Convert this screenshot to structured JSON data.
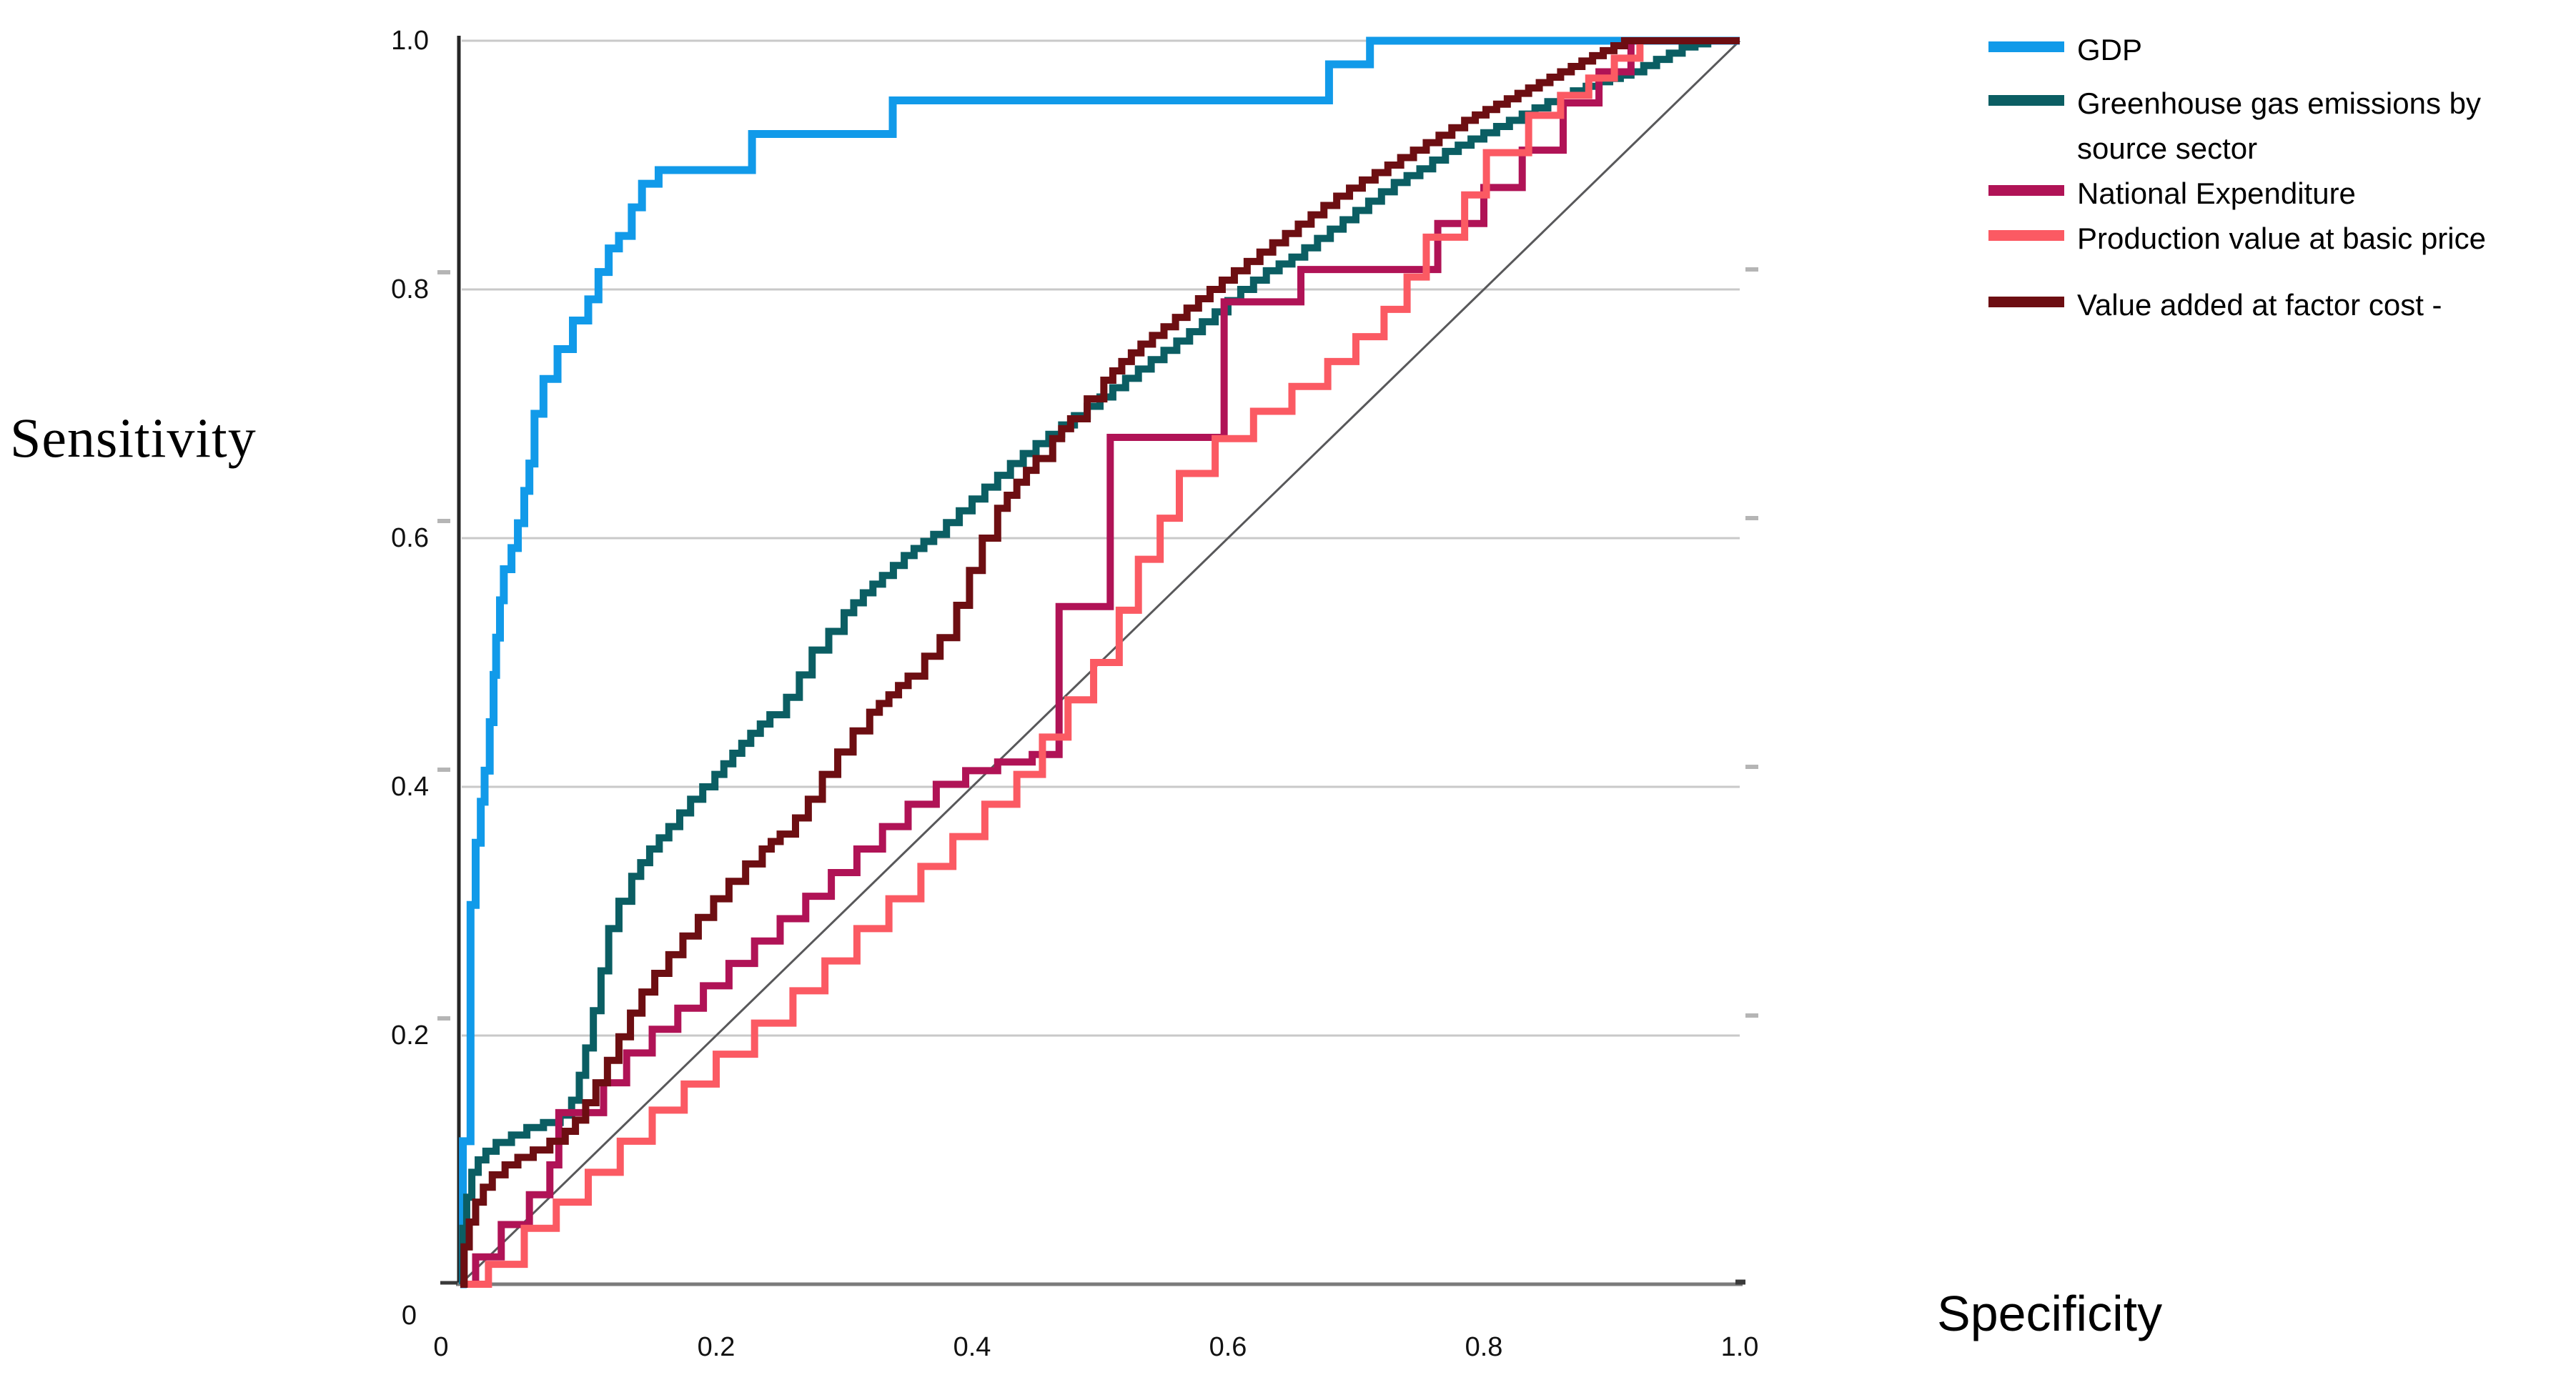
{
  "figure": {
    "kind": "roc-curve-plot",
    "background": "#ffffff"
  },
  "axes": {
    "y_title": "Sensitivity",
    "x_title": "Specificity",
    "y_tick_labels": [
      "1.0",
      "0.8",
      "0.6",
      "0.4",
      "0.2",
      "0"
    ],
    "x_tick_labels": [
      "0",
      "0.2",
      "0.4",
      "0.6",
      "0.8",
      "1.0"
    ],
    "grid_color": "#c9c9c9",
    "left_axis_color": "#262626",
    "bottom_axis_color": "#7b7b7b",
    "minor_tick_color": "#b5b5b5"
  },
  "legend": {
    "items": [
      {
        "label": "GDP",
        "color": "#119AE9"
      },
      {
        "label": "Greenhouse gas emissions by source sector",
        "color": "#0B5E63"
      },
      {
        "label": "National Expenditure",
        "color": "#B01356"
      },
      {
        "label": "Production value at basic price",
        "color": "#FB5A63"
      },
      {
        "label": "Value added at factor cost -",
        "color": "#6D0E12"
      }
    ]
  },
  "chart_data": {
    "type": "line",
    "subtype": "roc-step-curves",
    "title": "",
    "xlabel": "Specificity",
    "ylabel": "Sensitivity",
    "xlim": [
      0,
      1
    ],
    "ylim": [
      0,
      1
    ],
    "x_ticks": [
      0,
      0.2,
      0.4,
      0.6,
      0.8,
      1.0
    ],
    "y_ticks": [
      1.0,
      0.8,
      0.6,
      0.4,
      0.2,
      0
    ],
    "grid": "horizontal",
    "legend_position": "top-right",
    "reference_line": {
      "name": "diagonal",
      "from": [
        0,
        0
      ],
      "to": [
        1,
        1
      ],
      "color": "#58585A",
      "width": 3
    },
    "series": [
      {
        "id": "gdp",
        "name": "GDP",
        "color": "#119AE9",
        "width": 11,
        "texture": "coarse",
        "points": [
          [
            0,
            0
          ],
          [
            0.002,
            0.115
          ],
          [
            0.008,
            0.305
          ],
          [
            0.012,
            0.355
          ],
          [
            0.016,
            0.388
          ],
          [
            0.019,
            0.413
          ],
          [
            0.023,
            0.452
          ],
          [
            0.026,
            0.49
          ],
          [
            0.028,
            0.52
          ],
          [
            0.031,
            0.55
          ],
          [
            0.034,
            0.575
          ],
          [
            0.04,
            0.592
          ],
          [
            0.045,
            0.612
          ],
          [
            0.05,
            0.638
          ],
          [
            0.054,
            0.66
          ],
          [
            0.058,
            0.7
          ],
          [
            0.065,
            0.728
          ],
          [
            0.076,
            0.752
          ],
          [
            0.088,
            0.775
          ],
          [
            0.1,
            0.792
          ],
          [
            0.108,
            0.814
          ],
          [
            0.116,
            0.833
          ],
          [
            0.124,
            0.843
          ],
          [
            0.134,
            0.866
          ],
          [
            0.142,
            0.885
          ],
          [
            0.155,
            0.896
          ],
          [
            0.228,
            0.925
          ],
          [
            0.338,
            0.952
          ],
          [
            0.679,
            0.981
          ],
          [
            0.711,
            1.0
          ],
          [
            1.0,
            1.0
          ]
        ]
      },
      {
        "id": "greenhouse-gas",
        "name": "Greenhouse gas emissions by source sector",
        "color": "#0B5E63",
        "width": 10,
        "texture": "fine",
        "points": [
          [
            0,
            0
          ],
          [
            0.002,
            0.045
          ],
          [
            0.005,
            0.07
          ],
          [
            0.009,
            0.09
          ],
          [
            0.014,
            0.1
          ],
          [
            0.02,
            0.107
          ],
          [
            0.028,
            0.114
          ],
          [
            0.04,
            0.12
          ],
          [
            0.052,
            0.126
          ],
          [
            0.065,
            0.13
          ],
          [
            0.078,
            0.136
          ],
          [
            0.087,
            0.148
          ],
          [
            0.093,
            0.168
          ],
          [
            0.098,
            0.19
          ],
          [
            0.104,
            0.22
          ],
          [
            0.11,
            0.252
          ],
          [
            0.116,
            0.286
          ],
          [
            0.124,
            0.308
          ],
          [
            0.134,
            0.328
          ],
          [
            0.148,
            0.35
          ],
          [
            0.163,
            0.368
          ],
          [
            0.18,
            0.39
          ],
          [
            0.199,
            0.41
          ],
          [
            0.213,
            0.427
          ],
          [
            0.227,
            0.443
          ],
          [
            0.242,
            0.458
          ],
          [
            0.255,
            0.472
          ],
          [
            0.265,
            0.49
          ],
          [
            0.275,
            0.51
          ],
          [
            0.288,
            0.525
          ],
          [
            0.3,
            0.54
          ],
          [
            0.315,
            0.556
          ],
          [
            0.33,
            0.57
          ],
          [
            0.347,
            0.586
          ],
          [
            0.37,
            0.603
          ],
          [
            0.39,
            0.622
          ],
          [
            0.41,
            0.641
          ],
          [
            0.43,
            0.66
          ],
          [
            0.45,
            0.676
          ],
          [
            0.47,
            0.691
          ],
          [
            0.49,
            0.706
          ],
          [
            0.51,
            0.721
          ],
          [
            0.53,
            0.736
          ],
          [
            0.55,
            0.751
          ],
          [
            0.57,
            0.766
          ],
          [
            0.59,
            0.782
          ],
          [
            0.61,
            0.8
          ],
          [
            0.63,
            0.815
          ],
          [
            0.65,
            0.826
          ],
          [
            0.67,
            0.841
          ],
          [
            0.69,
            0.856
          ],
          [
            0.71,
            0.871
          ],
          [
            0.73,
            0.886
          ],
          [
            0.75,
            0.897
          ],
          [
            0.77,
            0.911
          ],
          [
            0.8,
            0.926
          ],
          [
            0.83,
            0.941
          ],
          [
            0.86,
            0.956
          ],
          [
            0.89,
            0.967
          ],
          [
            0.915,
            0.975
          ],
          [
            0.935,
            0.985
          ],
          [
            0.955,
            0.995
          ],
          [
            0.975,
            1.0
          ],
          [
            1.0,
            1.0
          ]
        ]
      },
      {
        "id": "national-expenditure",
        "name": "National Expenditure",
        "color": "#B01356",
        "width": 10,
        "texture": "coarse",
        "points": [
          [
            0,
            0
          ],
          [
            0.012,
            0.022
          ],
          [
            0.032,
            0.048
          ],
          [
            0.054,
            0.072
          ],
          [
            0.07,
            0.096
          ],
          [
            0.077,
            0.138
          ],
          [
            0.112,
            0.162
          ],
          [
            0.13,
            0.186
          ],
          [
            0.15,
            0.205
          ],
          [
            0.17,
            0.222
          ],
          [
            0.19,
            0.24
          ],
          [
            0.21,
            0.258
          ],
          [
            0.23,
            0.276
          ],
          [
            0.25,
            0.294
          ],
          [
            0.27,
            0.312
          ],
          [
            0.29,
            0.331
          ],
          [
            0.31,
            0.35
          ],
          [
            0.33,
            0.368
          ],
          [
            0.35,
            0.386
          ],
          [
            0.372,
            0.402
          ],
          [
            0.395,
            0.413
          ],
          [
            0.42,
            0.42
          ],
          [
            0.447,
            0.426
          ],
          [
            0.468,
            0.545
          ],
          [
            0.508,
            0.681
          ],
          [
            0.597,
            0.79
          ],
          [
            0.657,
            0.816
          ],
          [
            0.764,
            0.853
          ],
          [
            0.8,
            0.882
          ],
          [
            0.83,
            0.912
          ],
          [
            0.862,
            0.95
          ],
          [
            0.89,
            0.975
          ],
          [
            0.915,
            1.0
          ],
          [
            1.0,
            1.0
          ]
        ]
      },
      {
        "id": "production-value",
        "name": "Production value at basic price",
        "color": "#FB5A63",
        "width": 10,
        "texture": "coarse",
        "points": [
          [
            0,
            0
          ],
          [
            0.022,
            0.016
          ],
          [
            0.05,
            0.045
          ],
          [
            0.075,
            0.066
          ],
          [
            0.1,
            0.09
          ],
          [
            0.125,
            0.115
          ],
          [
            0.15,
            0.14
          ],
          [
            0.175,
            0.161
          ],
          [
            0.2,
            0.185
          ],
          [
            0.23,
            0.21
          ],
          [
            0.26,
            0.236
          ],
          [
            0.285,
            0.26
          ],
          [
            0.31,
            0.286
          ],
          [
            0.335,
            0.31
          ],
          [
            0.36,
            0.336
          ],
          [
            0.385,
            0.36
          ],
          [
            0.41,
            0.386
          ],
          [
            0.435,
            0.41
          ],
          [
            0.455,
            0.44
          ],
          [
            0.475,
            0.47
          ],
          [
            0.495,
            0.5
          ],
          [
            0.515,
            0.542
          ],
          [
            0.53,
            0.583
          ],
          [
            0.547,
            0.616
          ],
          [
            0.562,
            0.652
          ],
          [
            0.59,
            0.68
          ],
          [
            0.62,
            0.702
          ],
          [
            0.65,
            0.722
          ],
          [
            0.678,
            0.742
          ],
          [
            0.7,
            0.762
          ],
          [
            0.722,
            0.784
          ],
          [
            0.74,
            0.81
          ],
          [
            0.755,
            0.842
          ],
          [
            0.785,
            0.876
          ],
          [
            0.802,
            0.91
          ],
          [
            0.835,
            0.94
          ],
          [
            0.86,
            0.956
          ],
          [
            0.882,
            0.97
          ],
          [
            0.902,
            0.986
          ],
          [
            0.922,
            1.0
          ],
          [
            1.0,
            1.0
          ]
        ]
      },
      {
        "id": "value-added",
        "name": "Value added at factor cost -",
        "color": "#6D0E12",
        "width": 10,
        "texture": "fine",
        "points": [
          [
            0,
            0
          ],
          [
            0.003,
            0.03
          ],
          [
            0.007,
            0.05
          ],
          [
            0.012,
            0.066
          ],
          [
            0.018,
            0.078
          ],
          [
            0.025,
            0.088
          ],
          [
            0.035,
            0.096
          ],
          [
            0.045,
            0.102
          ],
          [
            0.057,
            0.108
          ],
          [
            0.07,
            0.115
          ],
          [
            0.082,
            0.123
          ],
          [
            0.09,
            0.132
          ],
          [
            0.098,
            0.146
          ],
          [
            0.106,
            0.162
          ],
          [
            0.115,
            0.18
          ],
          [
            0.124,
            0.199
          ],
          [
            0.133,
            0.218
          ],
          [
            0.142,
            0.235
          ],
          [
            0.152,
            0.25
          ],
          [
            0.163,
            0.265
          ],
          [
            0.174,
            0.28
          ],
          [
            0.186,
            0.295
          ],
          [
            0.198,
            0.31
          ],
          [
            0.21,
            0.324
          ],
          [
            0.223,
            0.338
          ],
          [
            0.236,
            0.35
          ],
          [
            0.25,
            0.362
          ],
          [
            0.262,
            0.375
          ],
          [
            0.272,
            0.39
          ],
          [
            0.283,
            0.41
          ],
          [
            0.295,
            0.428
          ],
          [
            0.307,
            0.445
          ],
          [
            0.32,
            0.46
          ],
          [
            0.335,
            0.474
          ],
          [
            0.35,
            0.489
          ],
          [
            0.363,
            0.505
          ],
          [
            0.375,
            0.52
          ],
          [
            0.388,
            0.546
          ],
          [
            0.398,
            0.574
          ],
          [
            0.408,
            0.6
          ],
          [
            0.42,
            0.624
          ],
          [
            0.435,
            0.645
          ],
          [
            0.45,
            0.664
          ],
          [
            0.463,
            0.68
          ],
          [
            0.477,
            0.696
          ],
          [
            0.49,
            0.712
          ],
          [
            0.503,
            0.727
          ],
          [
            0.517,
            0.742
          ],
          [
            0.532,
            0.756
          ],
          [
            0.55,
            0.77
          ],
          [
            0.568,
            0.785
          ],
          [
            0.586,
            0.8
          ],
          [
            0.605,
            0.815
          ],
          [
            0.625,
            0.83
          ],
          [
            0.645,
            0.845
          ],
          [
            0.665,
            0.86
          ],
          [
            0.685,
            0.875
          ],
          [
            0.705,
            0.888
          ],
          [
            0.725,
            0.9
          ],
          [
            0.745,
            0.912
          ],
          [
            0.765,
            0.924
          ],
          [
            0.785,
            0.936
          ],
          [
            0.81,
            0.949
          ],
          [
            0.835,
            0.962
          ],
          [
            0.86,
            0.975
          ],
          [
            0.885,
            0.988
          ],
          [
            0.91,
            1.0
          ],
          [
            1.0,
            1.0
          ]
        ]
      }
    ]
  }
}
